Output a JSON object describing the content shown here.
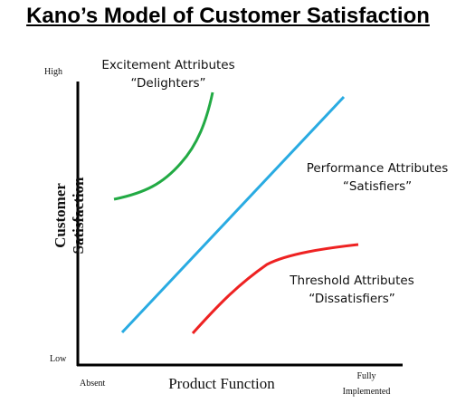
{
  "title": "Kano’s Model of Customer Satisfaction",
  "axes": {
    "y_label": "Customer Satisfaction",
    "x_label": "Product Function",
    "y_high": "High",
    "y_low": "Low",
    "x_start": "Absent",
    "x_end_line1": "Fully",
    "x_end_line2": "Implemented"
  },
  "curves": [
    {
      "id": "excitement",
      "name_line1": "Excitement Attributes",
      "name_line2": "“Delighters”",
      "color": "#22aa44"
    },
    {
      "id": "performance",
      "name_line1": "Performance Attributes",
      "name_line2": "“Satisfiers”",
      "color": "#29abe2"
    },
    {
      "id": "threshold",
      "name_line1": "Threshold Attributes",
      "name_line2": "“Dissatisfiers”",
      "color": "#ee2222"
    }
  ]
}
